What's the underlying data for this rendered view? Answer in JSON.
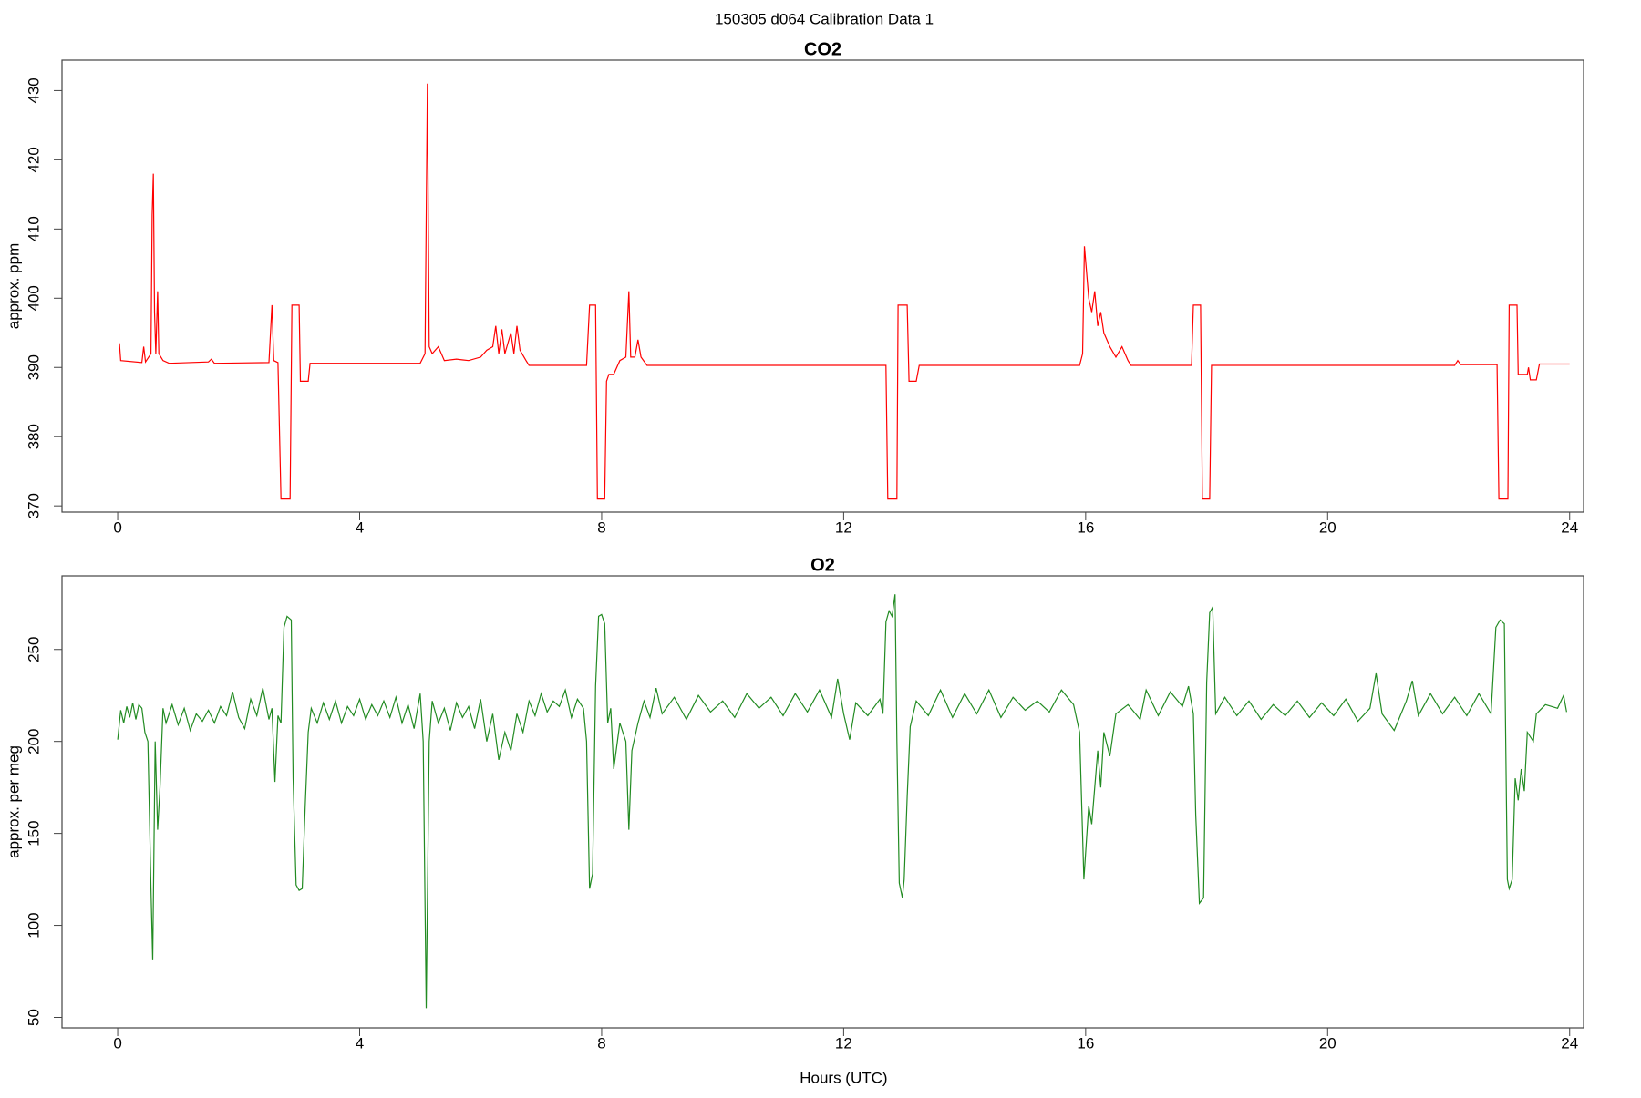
{
  "title": "150305   d064   Calibration Data 1",
  "chart_data": [
    {
      "type": "line",
      "title": "CO2",
      "ylabel": "approx. ppm",
      "color": "#ff0000",
      "xlim": [
        -0.92,
        24.23
      ],
      "xticks": [
        0,
        4,
        8,
        12,
        16,
        20,
        24
      ],
      "ylim": [
        369.1,
        434.4
      ],
      "yticks": [
        370,
        380,
        390,
        400,
        410,
        420,
        430
      ],
      "x": [
        0.03,
        0.05,
        0.4,
        0.43,
        0.46,
        0.55,
        0.57,
        0.59,
        0.61,
        0.63,
        0.66,
        0.68,
        0.75,
        0.85,
        1.5,
        1.55,
        1.6,
        2.5,
        2.55,
        2.58,
        2.65,
        2.7,
        2.85,
        2.88,
        3.0,
        3.02,
        3.15,
        3.18,
        5.0,
        5.08,
        5.12,
        5.15,
        5.2,
        5.3,
        5.4,
        5.6,
        5.8,
        6.0,
        6.1,
        6.2,
        6.25,
        6.3,
        6.35,
        6.4,
        6.5,
        6.55,
        6.6,
        6.65,
        6.75,
        6.8,
        7.75,
        7.8,
        7.9,
        7.93,
        8.05,
        8.08,
        8.12,
        8.2,
        8.3,
        8.4,
        8.45,
        8.48,
        8.55,
        8.6,
        8.65,
        8.75,
        12.7,
        12.73,
        12.88,
        12.9,
        13.05,
        13.08,
        13.2,
        13.25,
        15.9,
        15.95,
        15.98,
        16.05,
        16.1,
        16.15,
        16.2,
        16.25,
        16.3,
        16.4,
        16.5,
        16.6,
        16.7,
        16.75,
        17.75,
        17.78,
        17.9,
        17.93,
        18.05,
        18.08,
        22.1,
        22.15,
        22.2,
        22.8,
        22.83,
        22.98,
        23.0,
        23.13,
        23.15,
        23.3,
        23.32,
        23.35,
        23.45,
        23.5,
        24
      ],
      "values": [
        393.5,
        391,
        390.7,
        393,
        390.8,
        392,
        412,
        418,
        398,
        392,
        401,
        392,
        391,
        390.6,
        390.8,
        391.2,
        390.6,
        390.7,
        399,
        391,
        390.7,
        371,
        371,
        399,
        399,
        388,
        388,
        390.6,
        390.6,
        392,
        431,
        393,
        392,
        393,
        391,
        391.2,
        391,
        391.5,
        392.5,
        393,
        396,
        392,
        395.5,
        392,
        395,
        392,
        396,
        392.5,
        391,
        390.3,
        390.3,
        399,
        399,
        371,
        371,
        388,
        389,
        389,
        391,
        391.5,
        401,
        391.5,
        391.5,
        394,
        391.5,
        390.3,
        390.3,
        371,
        371,
        399,
        399,
        388,
        388,
        390.3,
        390.3,
        392,
        407.5,
        400,
        398,
        401,
        396,
        398,
        395,
        393,
        391.5,
        393,
        391,
        390.3,
        390.3,
        399,
        399,
        371,
        371,
        390.3,
        390.3,
        391,
        390.4,
        390.4,
        371,
        371,
        399,
        399,
        389,
        389,
        390,
        388.2,
        388.2,
        390.5,
        390.5
      ]
    },
    {
      "type": "line",
      "title": "O2",
      "ylabel": "approx. per meg",
      "xlabel": "Hours (UTC)",
      "color": "#228b22",
      "xlim": [
        -0.92,
        24.23
      ],
      "xticks": [
        0,
        4,
        8,
        12,
        16,
        20,
        24
      ],
      "ylim": [
        44.3,
        290
      ],
      "yticks": [
        50,
        100,
        150,
        200,
        250
      ],
      "x": [
        0.0,
        0.05,
        0.1,
        0.15,
        0.2,
        0.25,
        0.3,
        0.35,
        0.4,
        0.45,
        0.5,
        0.55,
        0.58,
        0.62,
        0.66,
        0.7,
        0.75,
        0.8,
        0.9,
        1.0,
        1.1,
        1.2,
        1.3,
        1.4,
        1.5,
        1.6,
        1.7,
        1.8,
        1.9,
        2.0,
        2.1,
        2.2,
        2.3,
        2.4,
        2.5,
        2.55,
        2.6,
        2.65,
        2.7,
        2.75,
        2.8,
        2.87,
        2.9,
        2.95,
        3.0,
        3.05,
        3.1,
        3.15,
        3.2,
        3.3,
        3.4,
        3.5,
        3.6,
        3.7,
        3.8,
        3.9,
        4.0,
        4.1,
        4.2,
        4.3,
        4.4,
        4.5,
        4.6,
        4.7,
        4.8,
        4.9,
        5.0,
        5.05,
        5.1,
        5.15,
        5.2,
        5.3,
        5.4,
        5.5,
        5.6,
        5.7,
        5.8,
        5.9,
        6.0,
        6.1,
        6.2,
        6.3,
        6.4,
        6.5,
        6.6,
        6.7,
        6.8,
        6.9,
        7.0,
        7.1,
        7.2,
        7.3,
        7.4,
        7.5,
        7.6,
        7.7,
        7.75,
        7.8,
        7.85,
        7.9,
        7.95,
        8.0,
        8.05,
        8.1,
        8.15,
        8.2,
        8.3,
        8.4,
        8.45,
        8.5,
        8.6,
        8.7,
        8.8,
        8.9,
        9.0,
        9.2,
        9.4,
        9.6,
        9.8,
        10.0,
        10.2,
        10.4,
        10.6,
        10.8,
        11.0,
        11.2,
        11.4,
        11.6,
        11.8,
        11.9,
        12.0,
        12.1,
        12.2,
        12.4,
        12.6,
        12.65,
        12.7,
        12.75,
        12.8,
        12.85,
        12.88,
        12.92,
        12.97,
        13.0,
        13.05,
        13.1,
        13.2,
        13.4,
        13.6,
        13.8,
        14.0,
        14.2,
        14.4,
        14.6,
        14.8,
        15.0,
        15.2,
        15.4,
        15.6,
        15.8,
        15.9,
        15.97,
        16.05,
        16.1,
        16.2,
        16.25,
        16.3,
        16.4,
        16.5,
        16.7,
        16.9,
        17.0,
        17.2,
        17.4,
        17.6,
        17.7,
        17.78,
        17.82,
        17.88,
        17.95,
        18.0,
        18.05,
        18.1,
        18.15,
        18.3,
        18.5,
        18.7,
        18.9,
        19.1,
        19.3,
        19.5,
        19.7,
        19.9,
        20.1,
        20.3,
        20.5,
        20.7,
        20.8,
        20.9,
        21.1,
        21.3,
        21.4,
        21.5,
        21.7,
        21.9,
        22.1,
        22.3,
        22.5,
        22.7,
        22.78,
        22.85,
        22.92,
        22.97,
        23.0,
        23.05,
        23.1,
        23.15,
        23.2,
        23.25,
        23.3,
        23.4,
        23.45,
        23.6,
        23.8,
        23.9,
        23.95
      ],
      "values": [
        201,
        217,
        210,
        219,
        213,
        221,
        212,
        220,
        218,
        205,
        200,
        120,
        81,
        200,
        152,
        175,
        218,
        210,
        220,
        209,
        218,
        206,
        215,
        211,
        217,
        210,
        219,
        214,
        227,
        213,
        207,
        223,
        214,
        229,
        212,
        218,
        178,
        214,
        210,
        262,
        268,
        266,
        180,
        122,
        119,
        120,
        165,
        205,
        218,
        210,
        221,
        212,
        222,
        210,
        219,
        214,
        223,
        212,
        220,
        214,
        222,
        213,
        224,
        210,
        220,
        207,
        226,
        200,
        55,
        200,
        222,
        210,
        218,
        206,
        221,
        213,
        219,
        207,
        223,
        200,
        215,
        190,
        205,
        195,
        215,
        205,
        222,
        214,
        226,
        216,
        222,
        219,
        228,
        213,
        223,
        218,
        200,
        120,
        128,
        230,
        268,
        269,
        264,
        210,
        218,
        185,
        210,
        200,
        152,
        195,
        210,
        222,
        213,
        229,
        215,
        224,
        212,
        225,
        216,
        222,
        213,
        226,
        218,
        224,
        214,
        226,
        216,
        228,
        213,
        234,
        215,
        201,
        221,
        214,
        223,
        215,
        265,
        271,
        268,
        280,
        200,
        123,
        115,
        125,
        170,
        208,
        222,
        214,
        228,
        213,
        226,
        215,
        228,
        213,
        224,
        217,
        222,
        216,
        228,
        220,
        205,
        125,
        165,
        155,
        195,
        175,
        205,
        192,
        215,
        220,
        212,
        228,
        214,
        227,
        219,
        230,
        215,
        160,
        112,
        115,
        232,
        270,
        273,
        215,
        224,
        214,
        222,
        212,
        220,
        214,
        222,
        213,
        221,
        214,
        223,
        211,
        218,
        237,
        215,
        206,
        222,
        233,
        214,
        226,
        215,
        224,
        214,
        226,
        215,
        262,
        266,
        264,
        125,
        120,
        125,
        180,
        168,
        185,
        173,
        205,
        200,
        215,
        220,
        218,
        225,
        216
      ]
    }
  ]
}
